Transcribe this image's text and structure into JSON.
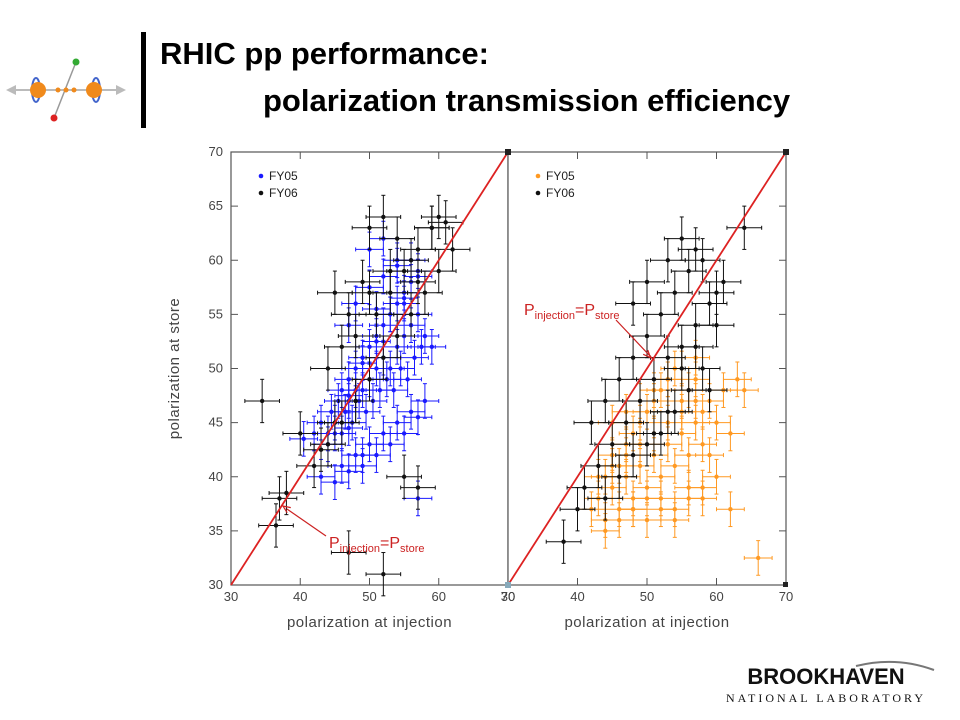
{
  "slide": {
    "title_line1": "RHIC pp performance:",
    "title_line2": "polarization transmission efficiency",
    "brand_name": "BROOKHAVEN",
    "brand_sub": "NATIONAL LABORATORY"
  },
  "colors": {
    "fy05_left": "#1a1aff",
    "fy05_right": "#ff9922",
    "fy06": "#111111",
    "diagonal": "#dd2222",
    "annotation": "#cc2222"
  },
  "chart_data": [
    {
      "type": "scatter",
      "panel": "left",
      "xlabel": "polarization at injection",
      "ylabel": "polarization at store",
      "xlim": [
        30,
        70
      ],
      "ylim": [
        30,
        70
      ],
      "xticks": [
        30,
        40,
        50,
        60,
        70
      ],
      "yticks": [
        30,
        35,
        40,
        45,
        50,
        55,
        60,
        65,
        70
      ],
      "grid": false,
      "legend_position": "top-left",
      "reference_line": {
        "x": [
          30,
          70
        ],
        "y": [
          30,
          70
        ]
      },
      "annotation": {
        "main": "P",
        "sub1": "injection",
        "eq": "=P",
        "sub2": "store",
        "target": [
          37.5,
          37.3
        ]
      },
      "series": [
        {
          "name": "FY05",
          "color": "#1a1aff",
          "x_err": 2.0,
          "y_err": 1.6,
          "x": [
            40.5,
            42,
            43,
            44,
            44.5,
            45,
            45.5,
            46,
            46,
            46.5,
            47,
            47,
            47.5,
            48,
            48,
            48.5,
            49,
            49,
            49.5,
            50,
            50,
            50.5,
            51,
            51,
            51.5,
            52,
            52,
            52.5,
            53,
            53,
            53.5,
            54,
            54,
            54.5,
            55,
            55,
            55.5,
            56,
            56,
            56.5,
            57,
            57,
            57.5,
            58,
            44,
            46,
            48,
            50,
            52,
            54,
            56,
            58,
            45,
            47,
            49,
            51,
            53,
            55,
            57,
            48,
            50,
            52,
            54,
            56,
            43,
            45,
            47,
            49,
            51,
            53,
            55,
            57,
            59,
            47,
            51,
            55,
            50,
            54,
            52,
            57,
            47,
            49
          ],
          "y": [
            43.5,
            44,
            45,
            43,
            46,
            45,
            47,
            44,
            48,
            46,
            47,
            49,
            45,
            48,
            50,
            47,
            48,
            51,
            46,
            49,
            52,
            47,
            50,
            53,
            48,
            51,
            54,
            49,
            50,
            55,
            48,
            52,
            56,
            50,
            53,
            57,
            49,
            54,
            58,
            51,
            55,
            59,
            52,
            53,
            44,
            41,
            42,
            43,
            44,
            45,
            46,
            47,
            44,
            47.5,
            50.5,
            52.5,
            55,
            56.5,
            58.5,
            56,
            57.5,
            58.5,
            59.5,
            60,
            40,
            39.5,
            40.5,
            41,
            42,
            43,
            44,
            45.5,
            52,
            54,
            55.5,
            56,
            61,
            60,
            62,
            38,
            44.5,
            42
          ]
        },
        {
          "name": "FY06",
          "color": "#111111",
          "x_err": 2.5,
          "y_err": 2.0,
          "x": [
            34.5,
            37,
            38,
            36.5,
            47,
            52,
            57,
            55,
            43,
            45,
            48,
            50,
            52,
            54,
            56,
            58,
            60,
            62,
            47,
            50,
            53,
            56,
            59,
            50,
            52,
            54,
            57,
            60,
            42,
            44,
            46,
            48,
            44,
            46,
            48,
            51,
            53,
            55,
            57,
            59,
            61,
            40,
            45,
            49
          ],
          "y": [
            47,
            38,
            38.5,
            35.5,
            33,
            31,
            39,
            40,
            42.5,
            45,
            47,
            49,
            51,
            53,
            55,
            57,
            59,
            61,
            55,
            57,
            59,
            60,
            63,
            63,
            64,
            62,
            58,
            64,
            41,
            43,
            45,
            47,
            50,
            52,
            53,
            55,
            57,
            59,
            61,
            63,
            63.5,
            44,
            57,
            58
          ]
        }
      ]
    },
    {
      "type": "scatter",
      "panel": "right",
      "xlabel": "polarization at injection",
      "xlim": [
        30,
        70
      ],
      "ylim": [
        30,
        70
      ],
      "xticks": [
        30,
        40,
        50,
        60,
        70
      ],
      "grid": false,
      "legend_position": "top-left",
      "reference_line": {
        "x": [
          30,
          70
        ],
        "y": [
          30,
          70
        ]
      },
      "annotation": {
        "main": "P",
        "sub1": "injection",
        "eq": "=P",
        "sub2": "store",
        "target": [
          50.5,
          51
        ]
      },
      "series": [
        {
          "name": "FY05",
          "color": "#ff9922",
          "x_err": 2.0,
          "y_err": 1.6,
          "x": [
            42,
            43,
            44,
            44,
            45,
            45,
            46,
            46,
            47,
            47,
            48,
            48,
            49,
            49,
            50,
            50,
            51,
            51,
            52,
            52,
            53,
            53,
            54,
            54,
            55,
            55,
            56,
            56,
            57,
            57,
            58,
            58,
            59,
            60,
            61,
            62,
            63,
            64,
            44,
            46,
            48,
            50,
            52,
            54,
            56,
            58,
            43,
            45,
            47,
            49,
            51,
            53,
            55,
            57,
            59,
            45,
            47,
            49,
            51,
            53,
            55,
            57,
            48,
            50,
            52,
            54,
            56,
            58,
            60,
            62,
            66
          ],
          "y": [
            37,
            38,
            36,
            40,
            39,
            42,
            37,
            41,
            40,
            43,
            38,
            44,
            41,
            45,
            39,
            46,
            42,
            47,
            40,
            48,
            43,
            49,
            41,
            50,
            44,
            47,
            42,
            48,
            45,
            49,
            43,
            46,
            47,
            45,
            48,
            44,
            49,
            48,
            35,
            36,
            37,
            38,
            37,
            36,
            38,
            39,
            40,
            41,
            42,
            43,
            44,
            45,
            46,
            47,
            42,
            45,
            46,
            47,
            48,
            49,
            50,
            51,
            37,
            36,
            38,
            37,
            39,
            38,
            40,
            37,
            32.5
          ]
        },
        {
          "name": "FY06",
          "color": "#111111",
          "x_err": 2.5,
          "y_err": 2.0,
          "x": [
            38,
            40,
            41,
            43,
            45,
            47,
            49,
            51,
            53,
            55,
            57,
            59,
            61,
            42,
            44,
            46,
            48,
            50,
            52,
            54,
            56,
            58,
            60,
            50,
            52,
            54,
            56,
            58,
            44,
            46,
            48,
            51,
            53,
            55,
            57,
            59,
            64,
            48,
            50,
            53,
            55,
            57,
            60
          ],
          "y": [
            34,
            37,
            39,
            41,
            43,
            45,
            47,
            49,
            51,
            52,
            54,
            56,
            58,
            45,
            47,
            49,
            51,
            53,
            55,
            57,
            59,
            60,
            54,
            43,
            44,
            46,
            48,
            50,
            38,
            40,
            42,
            44,
            46,
            50,
            52,
            48,
            63,
            56,
            58,
            60,
            62,
            61,
            57
          ]
        }
      ]
    }
  ]
}
